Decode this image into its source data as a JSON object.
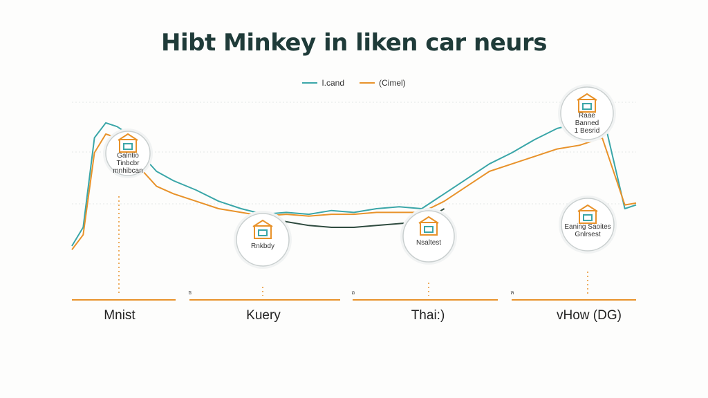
{
  "chart_data": {
    "type": "line",
    "title": "Hibt Minkey in liken car neurs",
    "xlabel": "",
    "ylabel": "",
    "grid": true,
    "legend_position": "top-center",
    "categories": [
      "Mnist",
      "Kuery",
      "Thai:)",
      "vHow (DG)"
    ],
    "axis_ticks": [
      "ธ",
      "อ",
      "ล"
    ],
    "series": [
      {
        "name": "I.cand",
        "color": "#3aa6a8",
        "x": [
          0,
          2,
          4,
          6,
          8,
          10,
          12,
          15,
          18,
          22,
          26,
          30,
          34,
          38,
          42,
          46,
          50,
          54,
          58,
          62,
          66,
          70,
          74,
          78,
          82,
          86,
          90,
          94,
          98,
          100
        ],
        "values": [
          20,
          30,
          78,
          86,
          84,
          80,
          70,
          60,
          55,
          50,
          44,
          40,
          37,
          38,
          37,
          39,
          38,
          40,
          41,
          40,
          48,
          56,
          64,
          70,
          77,
          83,
          86,
          92,
          40,
          42
        ]
      },
      {
        "name": "(Cimel)",
        "color": "#e8922a",
        "x": [
          0,
          2,
          4,
          6,
          8,
          10,
          12,
          15,
          18,
          22,
          26,
          30,
          34,
          38,
          42,
          46,
          50,
          54,
          58,
          62,
          66,
          70,
          74,
          78,
          82,
          86,
          90,
          94,
          98,
          100
        ],
        "values": [
          18,
          26,
          70,
          80,
          78,
          72,
          62,
          52,
          48,
          44,
          40,
          38,
          36,
          37,
          36,
          37,
          37,
          38,
          38,
          38,
          44,
          52,
          60,
          64,
          68,
          72,
          74,
          78,
          42,
          43
        ]
      },
      {
        "name": "",
        "color": "#2f4b3f",
        "x": [
          34,
          38,
          42,
          46,
          50,
          54,
          58,
          62,
          66
        ],
        "values": [
          35,
          33,
          31,
          30,
          30,
          31,
          32,
          33,
          40
        ]
      }
    ],
    "ylim": [
      0,
      100
    ],
    "xlim": [
      0,
      100
    ],
    "markers": [
      {
        "category": "Mnist",
        "icon": "house-icon",
        "label": "Galntio\nTinbcbr\nmnhibcan"
      },
      {
        "category": "Kuery",
        "icon": "gear-icon",
        "label": "Rnkbdy"
      },
      {
        "category": "Thai:)",
        "icon": "building-icon",
        "label": "Nsaltest"
      },
      {
        "category": "vHow (DG)",
        "icon": "sitemap-icon",
        "label": "Eaning Saoites\nGnlrsest"
      },
      {
        "category": "vHow (DG)",
        "icon": "dashboard-icon",
        "label": "Raae\nBanned\n1 Besrid"
      }
    ]
  },
  "colors": {
    "teal": "#3aa6a8",
    "orange": "#e8922a",
    "dark": "#2f4b3f",
    "title": "#1f3b39"
  }
}
